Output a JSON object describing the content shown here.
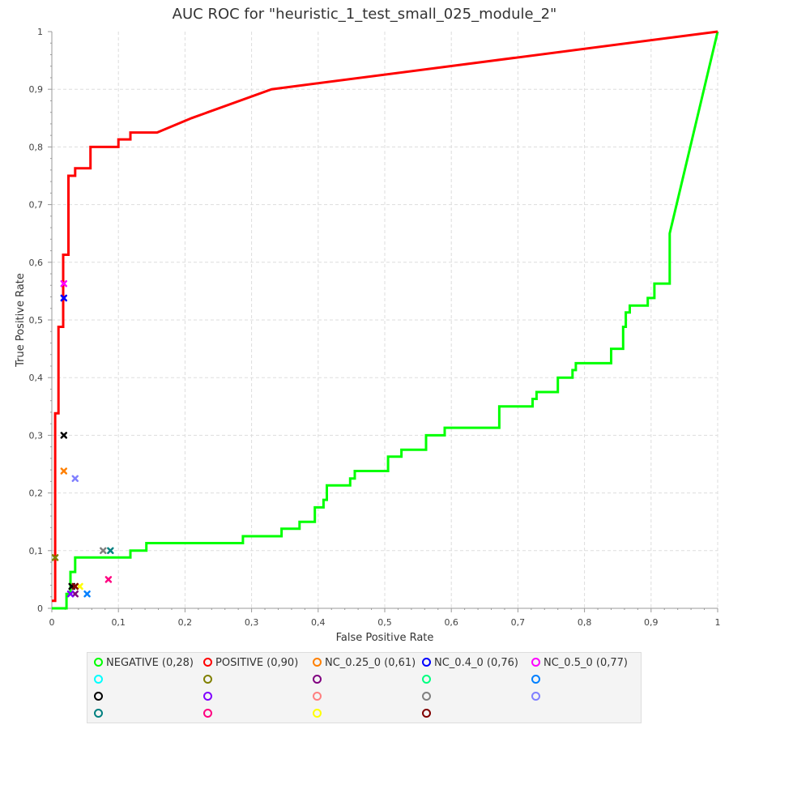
{
  "chart_data": {
    "type": "line",
    "title": "AUC ROC for \"heuristic_1_test_small_025_module_2\"",
    "xlabel": "False Positive Rate",
    "ylabel": "True Positive Rate",
    "xlim": [
      0,
      1
    ],
    "ylim": [
      0,
      1
    ],
    "xticks": [
      "0",
      "0,1",
      "0,2",
      "0,3",
      "0,4",
      "0,5",
      "0,6",
      "0,7",
      "0,8",
      "0,9",
      "1"
    ],
    "yticks": [
      "0",
      "0,1",
      "0,2",
      "0,3",
      "0,4",
      "0,5",
      "0,6",
      "0,7",
      "0,8",
      "0,9",
      "1"
    ],
    "grid": true,
    "legend_position": "bottom",
    "series": [
      {
        "name": "NEGATIVE (0,28)",
        "color": "#00ff00",
        "x": [
          0,
          0.022,
          0.022,
          0.028,
          0.028,
          0.035,
          0.035,
          0.118,
          0.118,
          0.142,
          0.142,
          0.287,
          0.287,
          0.345,
          0.345,
          0.372,
          0.372,
          0.395,
          0.395,
          0.408,
          0.408,
          0.413,
          0.413,
          0.448,
          0.448,
          0.455,
          0.455,
          0.505,
          0.505,
          0.525,
          0.525,
          0.562,
          0.562,
          0.59,
          0.59,
          0.672,
          0.672,
          0.722,
          0.722,
          0.728,
          0.728,
          0.76,
          0.76,
          0.782,
          0.782,
          0.787,
          0.787,
          0.84,
          0.84,
          0.858,
          0.858,
          0.862,
          0.862,
          0.868,
          0.868,
          0.895,
          0.895,
          0.905,
          0.905,
          0.928,
          0.928,
          1
        ],
        "y": [
          0,
          0,
          0.025,
          0.025,
          0.063,
          0.063,
          0.088,
          0.088,
          0.1,
          0.1,
          0.113,
          0.113,
          0.125,
          0.125,
          0.138,
          0.138,
          0.15,
          0.15,
          0.175,
          0.175,
          0.188,
          0.188,
          0.213,
          0.213,
          0.225,
          0.225,
          0.238,
          0.238,
          0.263,
          0.263,
          0.275,
          0.275,
          0.3,
          0.3,
          0.313,
          0.313,
          0.35,
          0.35,
          0.363,
          0.363,
          0.375,
          0.375,
          0.4,
          0.4,
          0.413,
          0.413,
          0.425,
          0.425,
          0.45,
          0.45,
          0.488,
          0.488,
          0.513,
          0.513,
          0.525,
          0.525,
          0.538,
          0.538,
          0.563,
          0.563,
          0.65,
          1
        ]
      },
      {
        "name": "POSITIVE (0,90)",
        "color": "#ff0000",
        "x": [
          0,
          0.005,
          0.005,
          0.01,
          0.01,
          0.017,
          0.017,
          0.025,
          0.025,
          0.035,
          0.035,
          0.058,
          0.058,
          0.1,
          0.1,
          0.118,
          0.118,
          0.128,
          0.128,
          0.158,
          0.21,
          0.33,
          1
        ],
        "y": [
          0.013,
          0.013,
          0.338,
          0.338,
          0.488,
          0.488,
          0.613,
          0.613,
          0.75,
          0.75,
          0.763,
          0.763,
          0.8,
          0.8,
          0.813,
          0.813,
          0.825,
          0.825,
          0.825,
          0.825,
          0.85,
          0.9,
          1
        ]
      }
    ],
    "markers": [
      {
        "x": 0.018,
        "y": 0.563,
        "color": "#ff00ff"
      },
      {
        "x": 0.018,
        "y": 0.538,
        "color": "#0000ff"
      },
      {
        "x": 0.018,
        "y": 0.3,
        "color": "#000000"
      },
      {
        "x": 0.018,
        "y": 0.238,
        "color": "#ff8000"
      },
      {
        "x": 0.035,
        "y": 0.225,
        "color": "#8080ff"
      },
      {
        "x": 0.077,
        "y": 0.1,
        "color": "#808080"
      },
      {
        "x": 0.088,
        "y": 0.1,
        "color": "#008080"
      },
      {
        "x": 0.085,
        "y": 0.05,
        "color": "#ff0080"
      },
      {
        "x": 0.03,
        "y": 0.038,
        "color": "#000000"
      },
      {
        "x": 0.042,
        "y": 0.038,
        "color": "#ffff00"
      },
      {
        "x": 0.035,
        "y": 0.038,
        "color": "#800000"
      },
      {
        "x": 0.035,
        "y": 0.025,
        "color": "#800080"
      },
      {
        "x": 0.053,
        "y": 0.025,
        "color": "#0080ff"
      },
      {
        "x": 0.028,
        "y": 0.025,
        "color": "#8000ff"
      },
      {
        "x": 0.005,
        "y": 0.088,
        "color": "#808000"
      }
    ],
    "legend": [
      {
        "label": "NEGATIVE (0,28)",
        "color": "#00ff00"
      },
      {
        "label": "POSITIVE (0,90)",
        "color": "#ff0000"
      },
      {
        "label": "NC_0.25_0 (0,61)",
        "color": "#ff8000"
      },
      {
        "label": "NC_0.4_0 (0,76)",
        "color": "#0000ff"
      },
      {
        "label": "NC_0.5_0 (0,77)",
        "color": "#ff00ff"
      },
      {
        "label": "",
        "color": "#00ffff"
      },
      {
        "label": "",
        "color": "#808000"
      },
      {
        "label": "",
        "color": "#800080"
      },
      {
        "label": "",
        "color": "#00ff80"
      },
      {
        "label": "",
        "color": "#0080ff"
      },
      {
        "label": "",
        "color": "#000000"
      },
      {
        "label": "",
        "color": "#8000ff"
      },
      {
        "label": "",
        "color": "#ff8080"
      },
      {
        "label": "",
        "color": "#808080"
      },
      {
        "label": "",
        "color": "#8080ff"
      },
      {
        "label": "",
        "color": "#008080"
      },
      {
        "label": "",
        "color": "#ff0080"
      },
      {
        "label": "",
        "color": "#ffff00"
      },
      {
        "label": "",
        "color": "#800000"
      }
    ]
  }
}
